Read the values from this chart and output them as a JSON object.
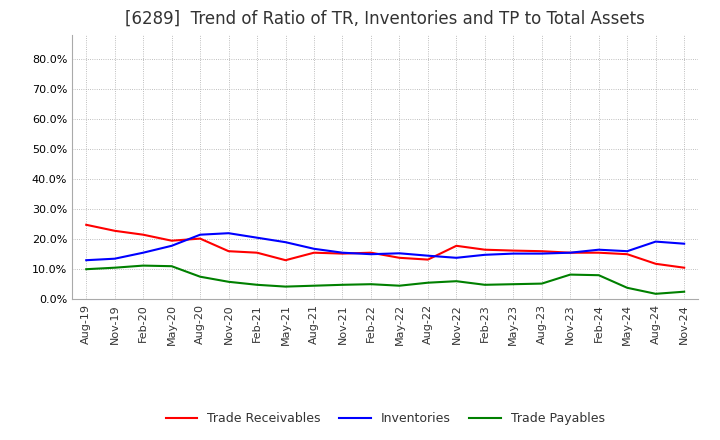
{
  "title": "[6289]  Trend of Ratio of TR, Inventories and TP to Total Assets",
  "title_fontsize": 12,
  "title_fontweight": "normal",
  "title_color": "#333333",
  "ylim": [
    0.0,
    0.88
  ],
  "yticks": [
    0.0,
    0.1,
    0.2,
    0.3,
    0.4,
    0.5,
    0.6,
    0.7,
    0.8
  ],
  "x_labels": [
    "Aug-19",
    "Nov-19",
    "Feb-20",
    "May-20",
    "Aug-20",
    "Nov-20",
    "Feb-21",
    "May-21",
    "Aug-21",
    "Nov-21",
    "Feb-22",
    "May-22",
    "Aug-22",
    "Nov-22",
    "Feb-23",
    "May-23",
    "Aug-23",
    "Nov-23",
    "Feb-24",
    "May-24",
    "Aug-24",
    "Nov-24"
  ],
  "trade_receivables": [
    0.248,
    0.228,
    0.215,
    0.195,
    0.202,
    0.16,
    0.155,
    0.13,
    0.155,
    0.152,
    0.155,
    0.138,
    0.132,
    0.178,
    0.165,
    0.162,
    0.16,
    0.155,
    0.155,
    0.15,
    0.118,
    0.105
  ],
  "inventories": [
    0.13,
    0.135,
    0.155,
    0.178,
    0.215,
    0.22,
    0.205,
    0.19,
    0.168,
    0.155,
    0.15,
    0.153,
    0.145,
    0.138,
    0.148,
    0.152,
    0.152,
    0.155,
    0.165,
    0.16,
    0.192,
    0.185
  ],
  "trade_payables": [
    0.1,
    0.105,
    0.112,
    0.11,
    0.075,
    0.058,
    0.048,
    0.042,
    0.045,
    0.048,
    0.05,
    0.045,
    0.055,
    0.06,
    0.048,
    0.05,
    0.052,
    0.082,
    0.08,
    0.038,
    0.018,
    0.025
  ],
  "tr_color": "#ff0000",
  "inv_color": "#0000ff",
  "tp_color": "#008000",
  "line_width": 1.5,
  "legend_labels": [
    "Trade Receivables",
    "Inventories",
    "Trade Payables"
  ],
  "background_color": "#ffffff",
  "grid_color": "#aaaaaa",
  "tick_fontsize": 8,
  "legend_fontsize": 9
}
